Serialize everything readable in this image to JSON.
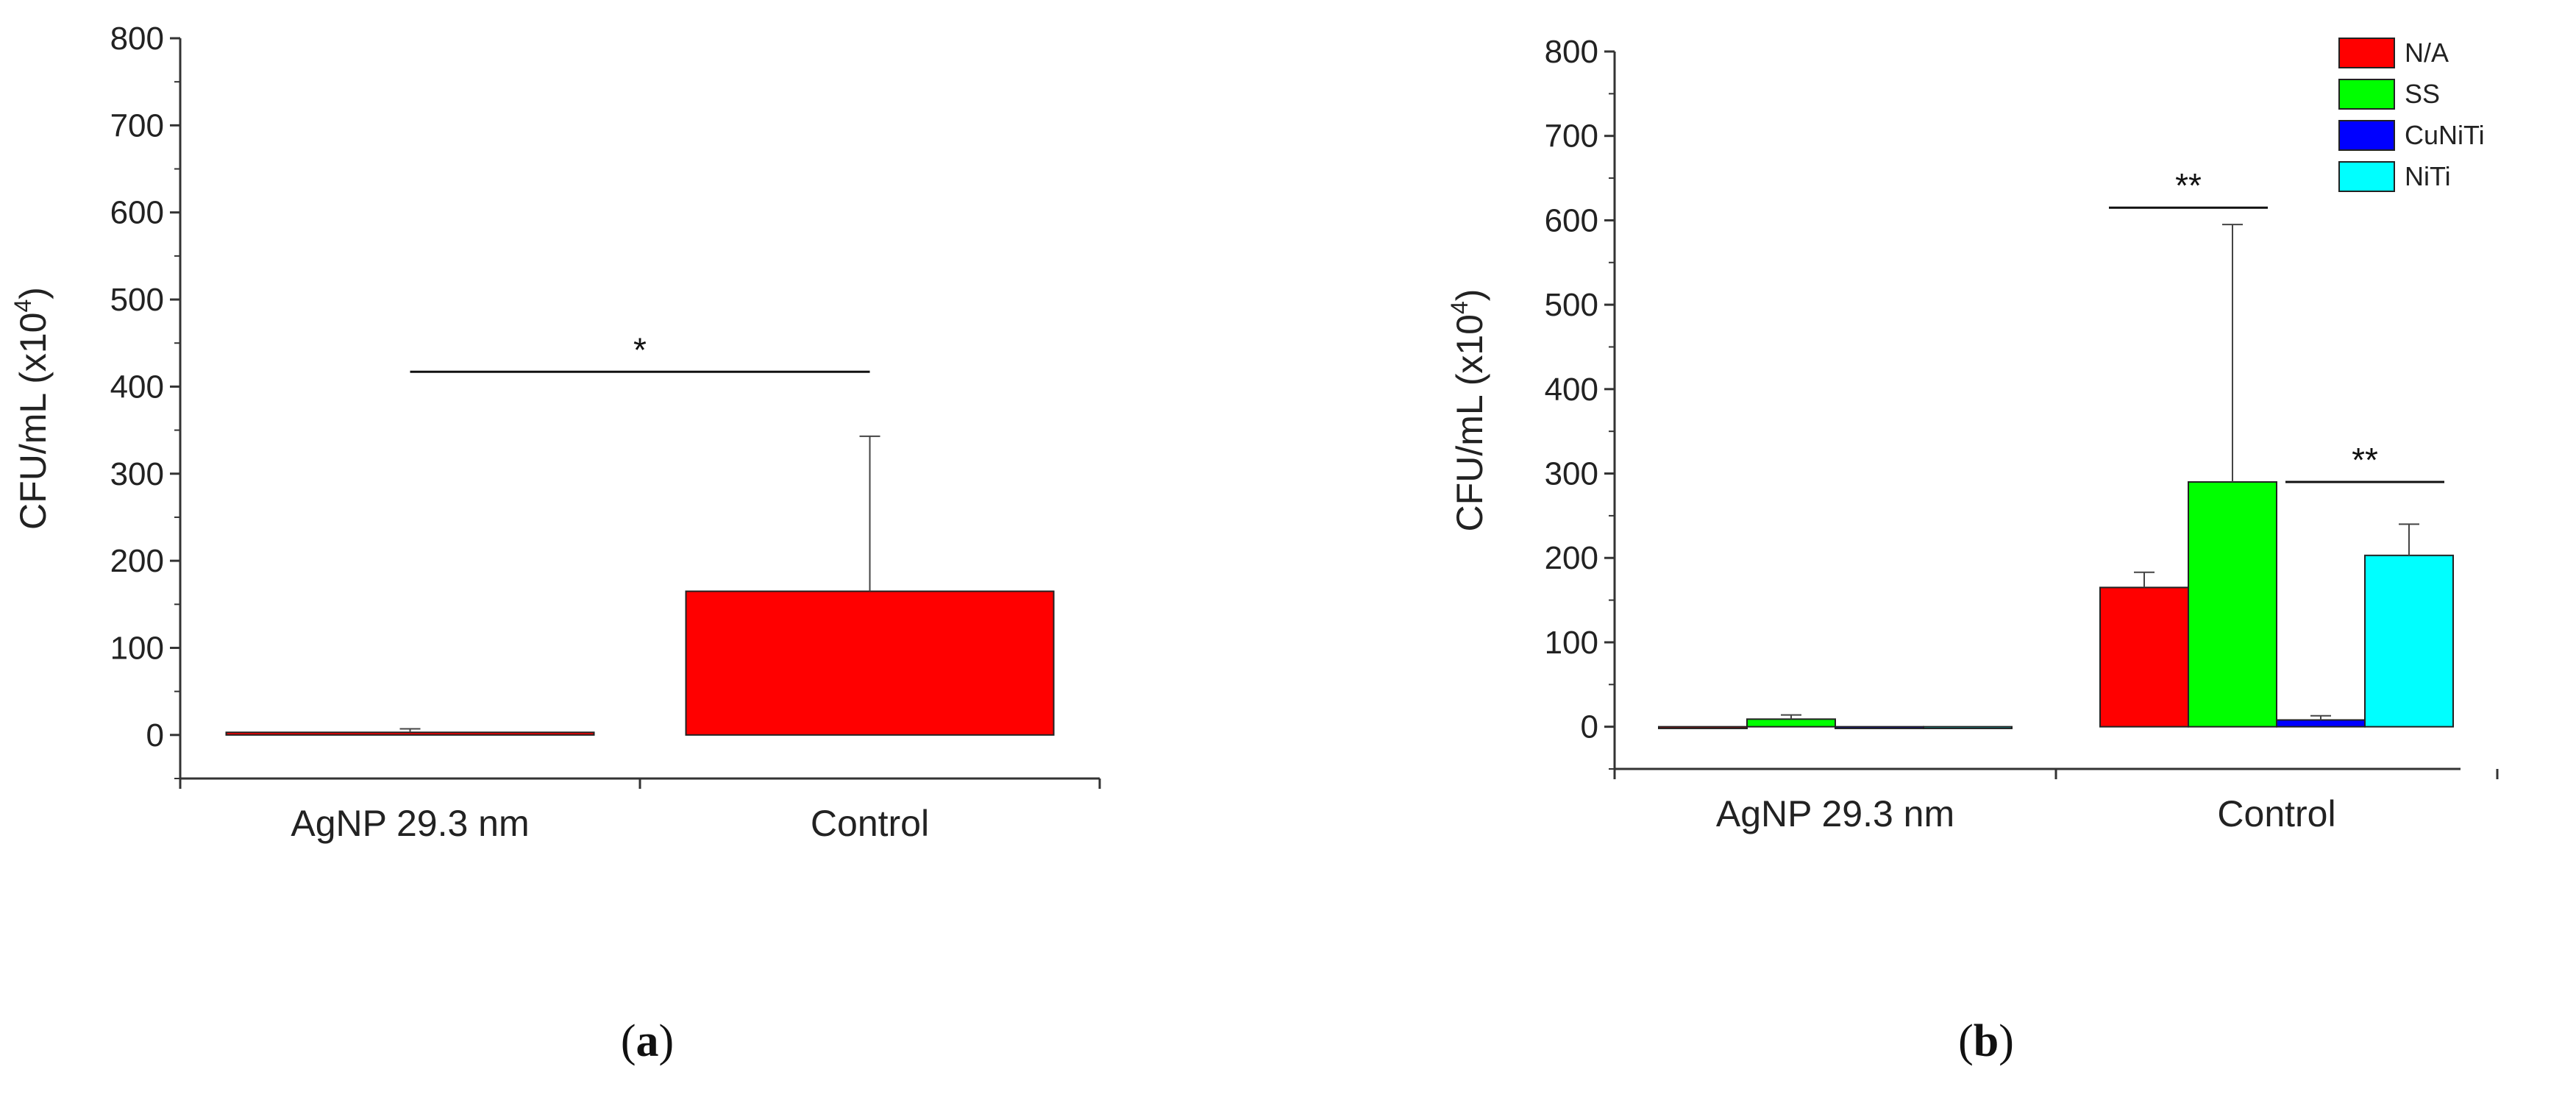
{
  "chart_data": [
    {
      "type": "bar",
      "panel_label": "a",
      "ylabel": "CFU/mL (x10",
      "ylabel_sup": "4",
      "ylabel_close": ")",
      "ylim": [
        -50,
        800
      ],
      "yticks": [
        0,
        100,
        200,
        300,
        400,
        500,
        600,
        700,
        800
      ],
      "categories": [
        "AgNP 29.3 nm",
        "Control"
      ],
      "series": [
        {
          "values": [
            3,
            165
          ],
          "errors": [
            4,
            178
          ],
          "color": "#ff0000"
        }
      ],
      "annotations": [
        {
          "text": "*",
          "from_category": 0,
          "to_category": 1,
          "y": 417
        }
      ]
    },
    {
      "type": "bar",
      "panel_label": "b",
      "ylabel": "CFU/mL (x10",
      "ylabel_sup": "4",
      "ylabel_close": ")",
      "ylim": [
        -50,
        800
      ],
      "yticks": [
        0,
        100,
        200,
        300,
        400,
        500,
        600,
        700,
        800
      ],
      "categories": [
        "AgNP 29.3 nm",
        "Control"
      ],
      "legend_position": "top-right",
      "series": [
        {
          "name": "N/A",
          "values": [
            -2,
            165
          ],
          "errors": [
            0,
            18
          ],
          "color": "#ff0000"
        },
        {
          "name": "SS",
          "values": [
            9,
            290
          ],
          "errors": [
            5,
            305
          ],
          "color": "#00ff00"
        },
        {
          "name": "CuNiTi",
          "values": [
            -2,
            8
          ],
          "errors": [
            0,
            5
          ],
          "color": "#0000ff"
        },
        {
          "name": "NiTi",
          "values": [
            -2,
            203
          ],
          "errors": [
            0,
            37
          ],
          "color": "#00ffff"
        }
      ],
      "annotations": [
        {
          "text": "**",
          "category": 1,
          "from_series": 0,
          "to_series": 1,
          "y": 615
        },
        {
          "text": "**",
          "category": 1,
          "from_series": 2,
          "to_series": 3,
          "y": 290
        }
      ]
    }
  ]
}
